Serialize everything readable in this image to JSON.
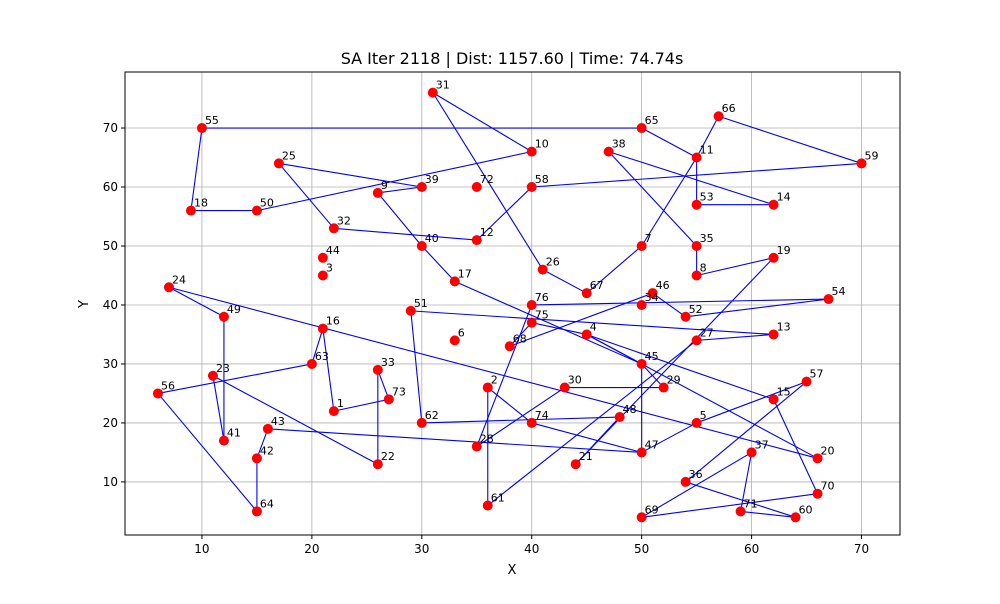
{
  "chart_data": {
    "type": "scatter",
    "title": "SA Iter 2118 | Dist: 1157.60 | Time: 74.74s",
    "xlabel": "X",
    "ylabel": "Y",
    "xlim": [
      3,
      73.5
    ],
    "ylim": [
      1,
      79.5
    ],
    "xticks": [
      10,
      20,
      30,
      40,
      50,
      60,
      70
    ],
    "yticks": [
      10,
      20,
      30,
      40,
      50,
      60,
      70
    ],
    "grid": true,
    "colors": {
      "points": "#ff0000",
      "route": "#0000ff",
      "grid": "#b0b0b0"
    },
    "points": [
      {
        "id": "1",
        "x": 22,
        "y": 22
      },
      {
        "id": "2",
        "x": 36,
        "y": 26
      },
      {
        "id": "3",
        "x": 21,
        "y": 45
      },
      {
        "id": "4",
        "x": 45,
        "y": 35
      },
      {
        "id": "5",
        "x": 55,
        "y": 20
      },
      {
        "id": "6",
        "x": 33,
        "y": 34
      },
      {
        "id": "7",
        "x": 50,
        "y": 50
      },
      {
        "id": "8",
        "x": 55,
        "y": 45
      },
      {
        "id": "9",
        "x": 26,
        "y": 59
      },
      {
        "id": "10",
        "x": 40,
        "y": 66
      },
      {
        "id": "11",
        "x": 55,
        "y": 65
      },
      {
        "id": "12",
        "x": 35,
        "y": 51
      },
      {
        "id": "13",
        "x": 62,
        "y": 35
      },
      {
        "id": "14",
        "x": 62,
        "y": 57
      },
      {
        "id": "15",
        "x": 62,
        "y": 24
      },
      {
        "id": "16",
        "x": 21,
        "y": 36
      },
      {
        "id": "17",
        "x": 33,
        "y": 44
      },
      {
        "id": "18",
        "x": 9,
        "y": 56
      },
      {
        "id": "19",
        "x": 62,
        "y": 48
      },
      {
        "id": "20",
        "x": 66,
        "y": 14
      },
      {
        "id": "21",
        "x": 44,
        "y": 13
      },
      {
        "id": "22",
        "x": 26,
        "y": 13
      },
      {
        "id": "23",
        "x": 11,
        "y": 28
      },
      {
        "id": "24",
        "x": 7,
        "y": 43
      },
      {
        "id": "25",
        "x": 17,
        "y": 64
      },
      {
        "id": "26",
        "x": 41,
        "y": 46
      },
      {
        "id": "27",
        "x": 55,
        "y": 34
      },
      {
        "id": "28",
        "x": 35,
        "y": 16
      },
      {
        "id": "29",
        "x": 52,
        "y": 26
      },
      {
        "id": "30",
        "x": 43,
        "y": 26
      },
      {
        "id": "31",
        "x": 31,
        "y": 76
      },
      {
        "id": "32",
        "x": 22,
        "y": 53
      },
      {
        "id": "33",
        "x": 26,
        "y": 29
      },
      {
        "id": "34",
        "x": 50,
        "y": 40
      },
      {
        "id": "35",
        "x": 55,
        "y": 50
      },
      {
        "id": "36",
        "x": 54,
        "y": 10
      },
      {
        "id": "37",
        "x": 60,
        "y": 15
      },
      {
        "id": "38",
        "x": 47,
        "y": 66
      },
      {
        "id": "39",
        "x": 30,
        "y": 60
      },
      {
        "id": "40",
        "x": 30,
        "y": 50
      },
      {
        "id": "41",
        "x": 12,
        "y": 17
      },
      {
        "id": "42",
        "x": 15,
        "y": 14
      },
      {
        "id": "43",
        "x": 16,
        "y": 19
      },
      {
        "id": "44",
        "x": 21,
        "y": 48
      },
      {
        "id": "45",
        "x": 50,
        "y": 30
      },
      {
        "id": "46",
        "x": 51,
        "y": 42
      },
      {
        "id": "47",
        "x": 50,
        "y": 15
      },
      {
        "id": "48",
        "x": 48,
        "y": 21
      },
      {
        "id": "49",
        "x": 12,
        "y": 38
      },
      {
        "id": "50",
        "x": 15,
        "y": 56
      },
      {
        "id": "51",
        "x": 29,
        "y": 39
      },
      {
        "id": "52",
        "x": 54,
        "y": 38
      },
      {
        "id": "53",
        "x": 55,
        "y": 57
      },
      {
        "id": "54",
        "x": 67,
        "y": 41
      },
      {
        "id": "55",
        "x": 10,
        "y": 70
      },
      {
        "id": "56",
        "x": 6,
        "y": 25
      },
      {
        "id": "57",
        "x": 65,
        "y": 27
      },
      {
        "id": "58",
        "x": 40,
        "y": 60
      },
      {
        "id": "59",
        "x": 70,
        "y": 64
      },
      {
        "id": "60",
        "x": 64,
        "y": 4
      },
      {
        "id": "61",
        "x": 36,
        "y": 6
      },
      {
        "id": "62",
        "x": 30,
        "y": 20
      },
      {
        "id": "63",
        "x": 20,
        "y": 30
      },
      {
        "id": "64",
        "x": 15,
        "y": 5
      },
      {
        "id": "65",
        "x": 50,
        "y": 70
      },
      {
        "id": "66",
        "x": 57,
        "y": 72
      },
      {
        "id": "67",
        "x": 45,
        "y": 42
      },
      {
        "id": "68",
        "x": 38,
        "y": 33
      },
      {
        "id": "69",
        "x": 50,
        "y": 4
      },
      {
        "id": "70",
        "x": 66,
        "y": 8
      },
      {
        "id": "71",
        "x": 59,
        "y": 5
      },
      {
        "id": "72",
        "x": 35,
        "y": 60
      },
      {
        "id": "73",
        "x": 27,
        "y": 24
      },
      {
        "id": "74",
        "x": 40,
        "y": 20
      },
      {
        "id": "75",
        "x": 40,
        "y": 37
      },
      {
        "id": "76",
        "x": 40,
        "y": 40
      }
    ],
    "route": [
      "55",
      "65",
      "11",
      "53",
      "14",
      "38",
      "35",
      "8",
      "19",
      "21",
      "48",
      "62",
      "51",
      "13",
      "27",
      "61",
      "2",
      "74",
      "47",
      "43",
      "42",
      "64",
      "56",
      "63",
      "16",
      "1",
      "73",
      "33",
      "22",
      "23",
      "41",
      "49",
      "24",
      "20",
      "4",
      "45",
      "29",
      "30",
      "28",
      "76",
      "54",
      "52",
      "46",
      "68",
      "75",
      "4",
      "15",
      "70",
      "69",
      "37",
      "71",
      "60",
      "36",
      "57",
      "5",
      "47",
      "45",
      "17",
      "40",
      "9",
      "39",
      "25",
      "32",
      "12",
      "58",
      "59",
      "66",
      "11",
      "7",
      "67",
      "26",
      "31",
      "10",
      "50",
      "18",
      "55"
    ]
  }
}
